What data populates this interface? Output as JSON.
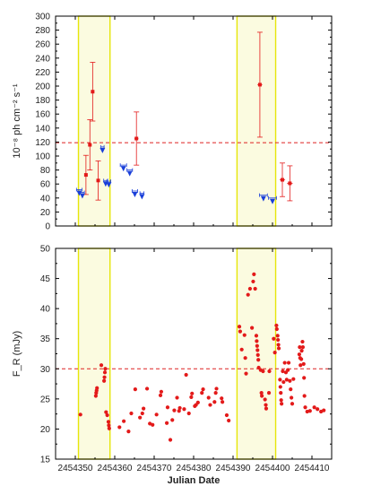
{
  "chart_data": [
    {
      "type": "scatter",
      "ylabel": "10⁻⁸ ph cm⁻² s⁻¹",
      "xlim": [
        2454345,
        2454415
      ],
      "ylim": [
        0,
        300
      ],
      "yticks": [
        0,
        20,
        40,
        60,
        80,
        100,
        120,
        140,
        160,
        180,
        200,
        220,
        240,
        260,
        280,
        300
      ],
      "xticks": [
        2454350,
        2454360,
        2454370,
        2454380,
        2454390,
        2454400,
        2454410
      ],
      "reference_line": {
        "y": 119,
        "color": "#dd2222",
        "style": "dashed"
      },
      "highlight_bands": [
        [
          2454350.8,
          2454358.8
        ],
        [
          2454391.0,
          2454400.8
        ]
      ],
      "detections": [
        {
          "x": 2454352.7,
          "y": 73,
          "err": 28,
          "xerr": 0.4
        },
        {
          "x": 2454353.7,
          "y": 116,
          "err": 36,
          "xerr": 0.4
        },
        {
          "x": 2454354.4,
          "y": 192,
          "err": 42,
          "xerr": 0.4
        },
        {
          "x": 2454355.8,
          "y": 65,
          "err": 28,
          "xerr": 0.4
        },
        {
          "x": 2454365.5,
          "y": 125,
          "err": 38,
          "xerr": 0.5
        },
        {
          "x": 2454396.8,
          "y": 202,
          "err": 75,
          "xerr": 0.6
        },
        {
          "x": 2454402.5,
          "y": 66,
          "err": 24,
          "xerr": 0.7
        },
        {
          "x": 2454404.4,
          "y": 61,
          "err": 25,
          "xerr": 0.7
        }
      ],
      "upper_limits": [
        {
          "x": 2454351.0,
          "y": 52,
          "xerr": 0.7
        },
        {
          "x": 2454351.8,
          "y": 48,
          "xerr": 0.5
        },
        {
          "x": 2454356.9,
          "y": 113,
          "xerr": 0.4
        },
        {
          "x": 2454357.7,
          "y": 65,
          "xerr": 0.5
        },
        {
          "x": 2454358.5,
          "y": 64,
          "xerr": 0.5
        },
        {
          "x": 2454362.2,
          "y": 87,
          "xerr": 0.8
        },
        {
          "x": 2454363.8,
          "y": 80,
          "xerr": 0.7
        },
        {
          "x": 2454365.1,
          "y": 50,
          "xerr": 0.7
        },
        {
          "x": 2454366.9,
          "y": 47,
          "xerr": 0.5
        },
        {
          "x": 2454397.7,
          "y": 44,
          "xerr": 1.0
        },
        {
          "x": 2454400.0,
          "y": 40,
          "xerr": 1.0
        }
      ]
    },
    {
      "type": "scatter",
      "xlabel": "Julian Date",
      "ylabel": "F_R (mJy)",
      "xlim": [
        2454345,
        2454415
      ],
      "ylim": [
        15,
        50
      ],
      "yticks": [
        15,
        20,
        25,
        30,
        35,
        40,
        45,
        50
      ],
      "xticks": [
        2454350,
        2454360,
        2454370,
        2454380,
        2454390,
        2454400,
        2454410
      ],
      "reference_line": {
        "y": 30,
        "color": "#dd2222",
        "style": "dashed"
      },
      "highlight_bands": [
        [
          2454350.8,
          2454358.8
        ],
        [
          2454391.0,
          2454400.8
        ]
      ],
      "points": [
        [
          2454351.3,
          22.4
        ],
        [
          2454355.2,
          25.5
        ],
        [
          2454355.3,
          26.0
        ],
        [
          2454355.4,
          26.4
        ],
        [
          2454355.5,
          26.8
        ],
        [
          2454356.6,
          30.6
        ],
        [
          2454357.3,
          28.0
        ],
        [
          2454357.4,
          28.6
        ],
        [
          2454357.5,
          29.4
        ],
        [
          2454357.6,
          30.0
        ],
        [
          2454357.8,
          22.8
        ],
        [
          2454358.1,
          22.3
        ],
        [
          2454358.4,
          21.2
        ],
        [
          2454358.5,
          20.6
        ],
        [
          2454358.6,
          20.1
        ],
        [
          2454361.2,
          20.3
        ],
        [
          2454362.3,
          21.3
        ],
        [
          2454363.5,
          19.6
        ],
        [
          2454364.2,
          22.6
        ],
        [
          2454365.2,
          26.6
        ],
        [
          2454366.4,
          21.9
        ],
        [
          2454367.0,
          22.6
        ],
        [
          2454367.3,
          23.4
        ],
        [
          2454368.2,
          26.7
        ],
        [
          2454368.9,
          20.9
        ],
        [
          2454369.6,
          20.7
        ],
        [
          2454370.6,
          22.4
        ],
        [
          2454371.6,
          25.6
        ],
        [
          2454371.8,
          26.2
        ],
        [
          2454373.2,
          21.0
        ],
        [
          2454373.4,
          23.6
        ],
        [
          2454374.1,
          18.2
        ],
        [
          2454374.6,
          21.5
        ],
        [
          2454375.1,
          23.1
        ],
        [
          2454375.8,
          25.2
        ],
        [
          2454376.3,
          23.0
        ],
        [
          2454376.5,
          23.5
        ],
        [
          2454377.6,
          23.3
        ],
        [
          2454378.1,
          29.0
        ],
        [
          2454378.8,
          22.6
        ],
        [
          2454379.4,
          25.3
        ],
        [
          2454379.6,
          25.9
        ],
        [
          2454380.3,
          23.8
        ],
        [
          2454380.6,
          24.0
        ],
        [
          2454381.1,
          24.4
        ],
        [
          2454382.1,
          26.0
        ],
        [
          2454382.4,
          26.6
        ],
        [
          2454383.8,
          25.2
        ],
        [
          2454384.2,
          24.0
        ],
        [
          2454385.3,
          24.5
        ],
        [
          2454385.6,
          26.0
        ],
        [
          2454385.8,
          26.7
        ],
        [
          2454387.1,
          25.1
        ],
        [
          2454387.3,
          24.5
        ],
        [
          2454388.4,
          22.3
        ],
        [
          2454388.9,
          21.4
        ],
        [
          2454391.6,
          37.0
        ],
        [
          2454391.8,
          36.2
        ],
        [
          2454392.2,
          33.2
        ],
        [
          2454392.9,
          35.6
        ],
        [
          2454393.1,
          31.8
        ],
        [
          2454393.3,
          29.2
        ],
        [
          2454393.8,
          42.3
        ],
        [
          2454394.3,
          43.3
        ],
        [
          2454394.8,
          36.8
        ],
        [
          2454395.1,
          44.5
        ],
        [
          2454395.3,
          45.7
        ],
        [
          2454395.6,
          43.3
        ],
        [
          2454395.9,
          35.5
        ],
        [
          2454396.0,
          34.6
        ],
        [
          2454396.1,
          33.8
        ],
        [
          2454396.2,
          33.1
        ],
        [
          2454396.3,
          32.3
        ],
        [
          2454396.4,
          31.5
        ],
        [
          2454396.5,
          30.2
        ],
        [
          2454397.0,
          29.8
        ],
        [
          2454397.2,
          26.0
        ],
        [
          2454397.3,
          25.5
        ],
        [
          2454397.6,
          29.6
        ],
        [
          2454398.1,
          24.9
        ],
        [
          2454398.3,
          24.0
        ],
        [
          2454398.4,
          23.4
        ],
        [
          2454399.1,
          26.0
        ],
        [
          2454399.2,
          29.6
        ],
        [
          2454400.3,
          35.0
        ],
        [
          2454400.6,
          32.7
        ],
        [
          2454401.0,
          37.2
        ],
        [
          2454401.1,
          36.6
        ],
        [
          2454401.3,
          35.5
        ],
        [
          2454401.4,
          34.8
        ],
        [
          2454401.5,
          34.0
        ],
        [
          2454401.6,
          33.4
        ],
        [
          2454401.9,
          28.2
        ],
        [
          2454402.0,
          27.0
        ],
        [
          2454402.1,
          26.0
        ],
        [
          2454402.2,
          24.8
        ],
        [
          2454402.3,
          24.2
        ],
        [
          2454402.6,
          29.6
        ],
        [
          2454402.8,
          27.8
        ],
        [
          2454403.1,
          31.0
        ],
        [
          2454403.4,
          29.4
        ],
        [
          2454403.6,
          28.2
        ],
        [
          2454403.9,
          29.8
        ],
        [
          2454404.1,
          31.0
        ],
        [
          2454404.4,
          28.0
        ],
        [
          2454404.6,
          26.6
        ],
        [
          2454404.8,
          25.2
        ],
        [
          2454405.0,
          24.2
        ],
        [
          2454405.3,
          28.3
        ],
        [
          2454406.8,
          32.4
        ],
        [
          2454406.9,
          33.6
        ],
        [
          2454407.0,
          31.8
        ],
        [
          2454407.1,
          30.6
        ],
        [
          2454407.3,
          31.6
        ],
        [
          2454407.4,
          33.0
        ],
        [
          2454407.6,
          34.5
        ],
        [
          2454407.7,
          33.6
        ],
        [
          2454407.9,
          30.8
        ],
        [
          2454408.0,
          28.5
        ],
        [
          2454408.1,
          25.5
        ],
        [
          2454408.3,
          23.6
        ],
        [
          2454408.8,
          22.9
        ],
        [
          2454409.5,
          23.0
        ],
        [
          2454410.6,
          23.6
        ],
        [
          2454411.4,
          23.3
        ],
        [
          2454412.3,
          22.9
        ],
        [
          2454413.0,
          23.1
        ]
      ]
    }
  ]
}
